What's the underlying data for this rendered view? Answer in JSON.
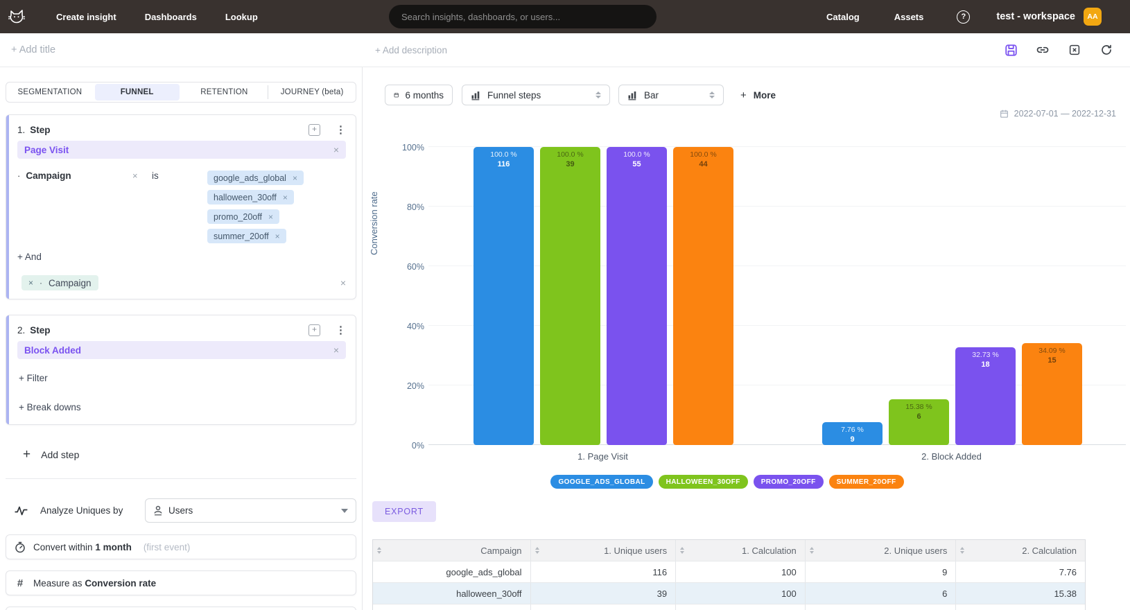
{
  "nav": {
    "logo": "cat-logo",
    "links": [
      "Create insight",
      "Dashboards",
      "Lookup"
    ],
    "search_placeholder": "Search insights, dashboards, or users...",
    "right_links": [
      "Catalog",
      "Assets"
    ],
    "workspace": "test - workspace",
    "avatar": "AA"
  },
  "title_bar": {
    "add_title": "+ Add title",
    "add_description": "+ Add description"
  },
  "builder": {
    "tabs": [
      {
        "label": "SEGMENTATION",
        "active": false
      },
      {
        "label": "FUNNEL",
        "active": true
      },
      {
        "label": "RETENTION",
        "active": false
      },
      {
        "label": "JOURNEY (beta)",
        "active": false,
        "divider_before": true
      }
    ],
    "steps": [
      {
        "index": "1.",
        "title": "Step",
        "event": "Page Visit",
        "filter": {
          "property": "Campaign",
          "operator": "is",
          "values": [
            "google_ads_global",
            "halloween_30off",
            "promo_20off",
            "summer_20off"
          ]
        },
        "and_label": "+ And",
        "breakdown": "Campaign"
      },
      {
        "index": "2.",
        "title": "Step",
        "event": "Block Added",
        "filter_label": "+ Filter",
        "breakdowns_label": "+ Break downs"
      }
    ],
    "add_step_label": "Add step",
    "analyze": {
      "label": "Analyze Uniques by",
      "value": "Users"
    },
    "convert": {
      "prefix": "Convert within",
      "value": "1 month",
      "hint": "(first event)"
    },
    "measure": {
      "prefix": "Measure as",
      "value": "Conversion rate"
    }
  },
  "chart_controls": {
    "date_preset": "6 months",
    "view": "Funnel steps",
    "chart_type": "Bar",
    "more_label": "More",
    "date_range": "2022-07-01 — 2022-12-31"
  },
  "chart_data": {
    "type": "bar",
    "title": "",
    "xlabel": "",
    "ylabel": "Conversion rate",
    "ylim": [
      0,
      100
    ],
    "yticks": [
      "0%",
      "20%",
      "40%",
      "60%",
      "80%",
      "100%"
    ],
    "grid": true,
    "legend_position": "bottom",
    "categories": [
      "1. Page Visit",
      "2. Block Added"
    ],
    "series": [
      {
        "name": "GOOGLE_ADS_GLOBAL",
        "color": "#2B8DE3",
        "label_tone": "light",
        "values": [
          100.0,
          7.76
        ],
        "value_labels": [
          "100.0 %",
          "7.76 %"
        ],
        "counts": [
          116,
          9
        ]
      },
      {
        "name": "HALLOWEEN_30OFF",
        "color": "#7FC41D",
        "label_tone": "dark",
        "values": [
          100.0,
          15.38
        ],
        "value_labels": [
          "100.0 %",
          "15.38 %"
        ],
        "counts": [
          39,
          6
        ]
      },
      {
        "name": "PROMO_20OFF",
        "color": "#7A52EE",
        "label_tone": "light",
        "values": [
          100.0,
          32.73
        ],
        "value_labels": [
          "100.0 %",
          "32.73 %"
        ],
        "counts": [
          55,
          18
        ]
      },
      {
        "name": "SUMMER_20OFF",
        "color": "#FB8310",
        "label_tone": "dark",
        "values": [
          100.0,
          34.09
        ],
        "value_labels": [
          "100.0 %",
          "34.09 %"
        ],
        "counts": [
          44,
          15
        ]
      }
    ]
  },
  "export_label": "EXPORT",
  "table": {
    "columns": [
      "Campaign",
      "1. Unique users",
      "1. Calculation",
      "2. Unique users",
      "2. Calculation"
    ],
    "rows": [
      [
        "google_ads_global",
        "116",
        "100",
        "9",
        "7.76"
      ],
      [
        "halloween_30off",
        "39",
        "100",
        "6",
        "15.38"
      ]
    ]
  }
}
